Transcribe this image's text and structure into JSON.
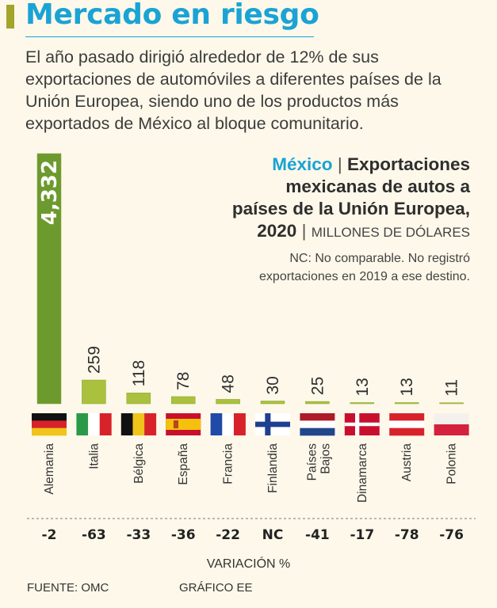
{
  "header": {
    "title": "Mercado en riesgo",
    "intro": "El año pasado dirigió alrededor de 12% de sus exportaciones de automóviles a diferentes países de la Unión Europea, siendo uno de los productos más exportados de México al bloque comunitario."
  },
  "chart_heading": {
    "country": "México",
    "separator": "|",
    "title_line1": "Exportaciones",
    "title_line2": "mexicanas de autos a",
    "title_line3": "países de la Unión Europea,",
    "year": "2020",
    "units": "MILLONES DE DÓLARES"
  },
  "note": "NC: No comparable. No registró exportaciones en 2019 a ese destino.",
  "colors": {
    "title": "#1aa3d4",
    "bar": "#a9c13d",
    "bar_edge": "#8aa232",
    "highlight_bar": "#6c9a2e",
    "background": "#fdf8ea"
  },
  "chart_data": {
    "type": "bar",
    "categories": [
      "Alemania",
      "Italia",
      "Bélgica",
      "España",
      "Francia",
      "Finlandia",
      "Países Bajos",
      "Dinamarca",
      "Austria",
      "Polonia"
    ],
    "values": [
      4332,
      259,
      118,
      78,
      48,
      30,
      25,
      13,
      13,
      11
    ],
    "value_labels": [
      "4,332",
      "259",
      "118",
      "78",
      "48",
      "30",
      "25",
      "13",
      "13",
      "11"
    ],
    "variation_pct": [
      "-2",
      "-63",
      "-33",
      "-36",
      "-22",
      "NC",
      "-41",
      "-17",
      "-78",
      "-76"
    ],
    "flags": [
      "germany-flag",
      "italy-flag",
      "belgium-flag",
      "spain-flag",
      "france-flag",
      "finland-flag",
      "netherlands-flag",
      "denmark-flag",
      "austria-flag",
      "poland-flag"
    ],
    "axis_break": true,
    "variation_label": "VARIACIÓN %"
  },
  "footer": {
    "source": "FUENTE: OMC",
    "credit": "GRÁFICO EE"
  }
}
